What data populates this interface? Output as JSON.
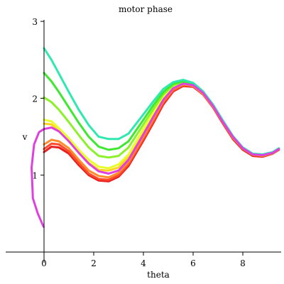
{
  "chart_data": {
    "type": "line",
    "title": "motor phase",
    "xlabel": "theta",
    "ylabel": "v",
    "xlim": [
      -1.55,
      9.45
    ],
    "ylim": [
      0.0,
      3.0
    ],
    "xticks": [
      0,
      2,
      4,
      6,
      8
    ],
    "yticks": [
      1,
      2,
      3
    ],
    "grid": false,
    "legend": "none",
    "series": [
      {
        "color": "#e82020",
        "x": [
          0.0,
          0.3,
          0.6,
          1.0,
          1.4,
          1.8,
          2.2,
          2.6,
          3.0,
          3.4,
          4.0,
          4.4,
          4.8,
          5.2,
          5.6,
          6.0,
          6.4,
          6.8,
          7.2,
          7.6,
          8.0,
          8.4,
          8.8,
          9.2,
          9.45
        ],
        "y": [
          1.3,
          1.37,
          1.36,
          1.28,
          1.13,
          1.0,
          0.93,
          0.92,
          0.98,
          1.12,
          1.45,
          1.68,
          1.92,
          2.09,
          2.16,
          2.15,
          2.05,
          1.88,
          1.67,
          1.47,
          1.33,
          1.25,
          1.24,
          1.28,
          1.33
        ]
      },
      {
        "color": "#ff4a2a",
        "x": [
          0.0,
          0.3,
          0.6,
          1.0,
          1.4,
          1.8,
          2.2,
          2.6,
          3.0,
          3.4,
          4.0,
          4.4,
          4.8,
          5.2,
          5.6,
          6.0,
          6.4,
          6.8,
          7.2,
          7.6,
          8.0,
          8.4,
          8.8,
          9.2,
          9.45
        ],
        "y": [
          1.34,
          1.41,
          1.4,
          1.31,
          1.16,
          1.02,
          0.95,
          0.94,
          1.0,
          1.14,
          1.47,
          1.7,
          1.94,
          2.1,
          2.17,
          2.16,
          2.05,
          1.89,
          1.68,
          1.48,
          1.34,
          1.26,
          1.25,
          1.28,
          1.33
        ]
      },
      {
        "color": "#ff8c2e",
        "x": [
          0.0,
          0.3,
          0.6,
          1.0,
          1.4,
          1.8,
          2.2,
          2.6,
          3.0,
          3.4,
          4.0,
          4.4,
          4.8,
          5.2,
          5.6,
          6.0,
          6.4,
          6.8,
          7.2,
          7.6,
          8.0,
          8.4,
          8.8,
          9.2,
          9.45
        ],
        "y": [
          1.4,
          1.46,
          1.44,
          1.35,
          1.2,
          1.06,
          0.99,
          0.97,
          1.03,
          1.17,
          1.5,
          1.73,
          1.96,
          2.12,
          2.18,
          2.16,
          2.06,
          1.89,
          1.69,
          1.49,
          1.35,
          1.27,
          1.25,
          1.29,
          1.34
        ]
      },
      {
        "color": "#ffd21e",
        "x": [
          0.0,
          0.3,
          0.6,
          1.0,
          1.4,
          1.8,
          2.2,
          2.6,
          3.0,
          3.4,
          4.0,
          4.4,
          4.8,
          5.2,
          5.6,
          6.0,
          6.4,
          6.8,
          7.2,
          7.6,
          8.0,
          8.4,
          8.8,
          9.2,
          9.45
        ],
        "y": [
          1.67,
          1.66,
          1.57,
          1.44,
          1.29,
          1.16,
          1.07,
          1.06,
          1.1,
          1.24,
          1.57,
          1.79,
          2.0,
          2.14,
          2.19,
          2.17,
          2.07,
          1.9,
          1.69,
          1.5,
          1.35,
          1.27,
          1.26,
          1.29,
          1.34
        ]
      },
      {
        "color": "#e6ff2a",
        "x": [
          0.0,
          0.3,
          0.6,
          1.0,
          1.4,
          1.8,
          2.2,
          2.6,
          3.0,
          3.4,
          4.0,
          4.4,
          4.8,
          5.2,
          5.6,
          6.0,
          6.4,
          6.8,
          7.2,
          7.6,
          8.0,
          8.4,
          8.8,
          9.2,
          9.45
        ],
        "y": [
          1.72,
          1.7,
          1.61,
          1.48,
          1.33,
          1.2,
          1.11,
          1.09,
          1.14,
          1.27,
          1.6,
          1.81,
          2.02,
          2.15,
          2.2,
          2.17,
          2.07,
          1.9,
          1.69,
          1.5,
          1.35,
          1.27,
          1.26,
          1.29,
          1.34
        ]
      },
      {
        "color": "#8cf02a",
        "x": [
          0.0,
          0.3,
          0.6,
          1.0,
          1.4,
          1.8,
          2.2,
          2.6,
          3.0,
          3.4,
          4.0,
          4.4,
          4.8,
          5.2,
          5.6,
          6.0,
          6.4,
          6.8,
          7.2,
          7.6,
          8.0,
          8.4,
          8.8,
          9.2,
          9.45
        ],
        "y": [
          2.01,
          1.95,
          1.85,
          1.69,
          1.52,
          1.36,
          1.25,
          1.23,
          1.25,
          1.36,
          1.66,
          1.86,
          2.05,
          2.17,
          2.21,
          2.18,
          2.07,
          1.9,
          1.69,
          1.5,
          1.35,
          1.27,
          1.26,
          1.29,
          1.34
        ]
      },
      {
        "color": "#3ee830",
        "x": [
          0.0,
          0.3,
          0.6,
          1.0,
          1.4,
          1.8,
          2.2,
          2.6,
          3.0,
          3.4,
          4.0,
          4.4,
          4.8,
          5.2,
          5.6,
          6.0,
          6.4,
          6.8,
          7.2,
          7.6,
          8.0,
          8.4,
          8.8,
          9.2,
          9.45
        ],
        "y": [
          2.33,
          2.22,
          2.08,
          1.88,
          1.68,
          1.5,
          1.37,
          1.33,
          1.35,
          1.44,
          1.72,
          1.91,
          2.08,
          2.19,
          2.22,
          2.19,
          2.08,
          1.91,
          1.7,
          1.5,
          1.35,
          1.27,
          1.26,
          1.29,
          1.34
        ]
      },
      {
        "color": "#2ee8b0",
        "x": [
          0.0,
          0.3,
          0.6,
          1.0,
          1.4,
          1.8,
          2.2,
          2.6,
          3.0,
          3.4,
          4.0,
          4.4,
          4.8,
          5.2,
          5.6,
          6.0,
          6.4,
          6.8,
          7.2,
          7.6,
          8.0,
          8.4,
          8.8,
          9.2,
          9.45
        ],
        "y": [
          2.65,
          2.5,
          2.32,
          2.08,
          1.85,
          1.65,
          1.5,
          1.47,
          1.47,
          1.54,
          1.79,
          1.96,
          2.12,
          2.21,
          2.24,
          2.2,
          2.09,
          1.92,
          1.71,
          1.51,
          1.36,
          1.28,
          1.27,
          1.3,
          1.35
        ]
      },
      {
        "color": "#e040e0",
        "x": [
          -0.02,
          -0.25,
          -0.45,
          -0.5,
          -0.4,
          -0.2,
          0.0,
          0.3,
          0.6,
          1.0,
          1.4,
          1.8,
          2.2,
          2.6,
          3.0,
          3.4,
          4.0,
          4.4,
          4.8,
          5.2,
          5.6,
          6.0,
          6.4,
          6.8,
          7.2,
          7.6,
          8.0,
          8.4,
          8.8,
          9.2,
          9.45
        ],
        "y": [
          0.33,
          0.5,
          0.7,
          1.1,
          1.4,
          1.56,
          1.6,
          1.62,
          1.57,
          1.44,
          1.29,
          1.15,
          1.05,
          1.02,
          1.06,
          1.2,
          1.53,
          1.76,
          1.98,
          2.13,
          2.19,
          2.17,
          2.07,
          1.9,
          1.69,
          1.5,
          1.35,
          1.27,
          1.26,
          1.29,
          1.34
        ]
      }
    ]
  }
}
